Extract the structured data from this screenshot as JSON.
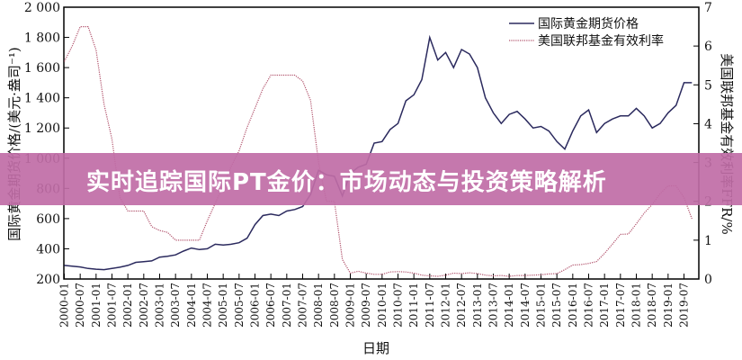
{
  "banner": {
    "title": "实时追踪国际PT金价：市场动态与投资策略解析",
    "color": "#c06ca6"
  },
  "chart_data": {
    "type": "line",
    "xlabel": "日期",
    "ylabel_left": "国际黄金期货价格/(美元·盎司⁻¹)",
    "ylabel_right": "美国联邦基金有效利率FFR/%",
    "ylim_left": [
      200,
      2000
    ],
    "ylim_right": [
      0,
      7
    ],
    "yticks_left": [
      "200",
      "400",
      "600",
      "800",
      "1 000",
      "1 200",
      "1 400",
      "1 600",
      "1 800",
      "2 000"
    ],
    "yticks_right": [
      "0",
      "1",
      "2",
      "3",
      "4",
      "5",
      "6",
      "7"
    ],
    "xticks": [
      "2000-01",
      "2000-07",
      "2001-01",
      "2001-07",
      "2002-01",
      "2002-07",
      "2003-01",
      "2003-07",
      "2004-01",
      "2004-07",
      "2005-01",
      "2005-07",
      "2006-01",
      "2006-07",
      "2007-01",
      "2007-07",
      "2008-01",
      "2008-07",
      "2009-01",
      "2009-07",
      "2010-01",
      "2010-07",
      "2011-01",
      "2011-07",
      "2012-01",
      "2012-07",
      "2013-01",
      "2013-07",
      "2014-01",
      "2014-07",
      "2015-01",
      "2015-07",
      "2016-01",
      "2016-07",
      "2017-01",
      "2017-07",
      "2018-01",
      "2018-07",
      "2019-01",
      "2019-07"
    ],
    "grid": false,
    "legend_position": "top-right",
    "x": [
      "2000-01",
      "2000-04",
      "2000-07",
      "2000-10",
      "2001-01",
      "2001-04",
      "2001-07",
      "2001-10",
      "2002-01",
      "2002-04",
      "2002-07",
      "2002-10",
      "2003-01",
      "2003-04",
      "2003-07",
      "2003-10",
      "2004-01",
      "2004-04",
      "2004-07",
      "2004-10",
      "2005-01",
      "2005-04",
      "2005-07",
      "2005-10",
      "2006-01",
      "2006-04",
      "2006-07",
      "2006-10",
      "2007-01",
      "2007-04",
      "2007-07",
      "2007-10",
      "2008-01",
      "2008-04",
      "2008-07",
      "2008-10",
      "2009-01",
      "2009-04",
      "2009-07",
      "2009-10",
      "2010-01",
      "2010-04",
      "2010-07",
      "2010-10",
      "2011-01",
      "2011-04",
      "2011-07",
      "2011-10",
      "2012-01",
      "2012-04",
      "2012-07",
      "2012-10",
      "2013-01",
      "2013-04",
      "2013-07",
      "2013-10",
      "2014-01",
      "2014-04",
      "2014-07",
      "2014-10",
      "2015-01",
      "2015-04",
      "2015-07",
      "2015-10",
      "2016-01",
      "2016-04",
      "2016-07",
      "2016-10",
      "2017-01",
      "2017-04",
      "2017-07",
      "2017-10",
      "2018-01",
      "2018-04",
      "2018-07",
      "2018-10",
      "2019-01",
      "2019-04",
      "2019-07",
      "2019-10"
    ],
    "series": [
      {
        "name": "国际黄金期货价格",
        "axis": "left",
        "color": "#2b2a5e",
        "style": "solid",
        "values": [
          290,
          285,
          280,
          270,
          265,
          262,
          270,
          278,
          290,
          310,
          315,
          320,
          345,
          350,
          360,
          385,
          405,
          395,
          400,
          430,
          425,
          430,
          440,
          470,
          560,
          620,
          630,
          620,
          650,
          660,
          680,
          760,
          920,
          890,
          880,
          750,
          900,
          940,
          960,
          1100,
          1110,
          1190,
          1230,
          1380,
          1420,
          1520,
          1800,
          1650,
          1700,
          1600,
          1720,
          1690,
          1600,
          1400,
          1300,
          1230,
          1290,
          1310,
          1260,
          1200,
          1210,
          1180,
          1110,
          1060,
          1180,
          1280,
          1320,
          1170,
          1230,
          1260,
          1280,
          1280,
          1330,
          1280,
          1200,
          1230,
          1300,
          1350,
          1500,
          1500
        ]
      },
      {
        "name": "美国联邦基金有效利率",
        "axis": "right",
        "color": "#b0506a",
        "style": "dotted",
        "values": [
          5.6,
          6.0,
          6.5,
          6.5,
          5.9,
          4.5,
          3.6,
          2.1,
          1.75,
          1.75,
          1.75,
          1.35,
          1.25,
          1.2,
          1.0,
          1.0,
          1.0,
          1.0,
          1.5,
          1.95,
          2.4,
          2.9,
          3.3,
          3.9,
          4.4,
          4.9,
          5.25,
          5.25,
          5.25,
          5.25,
          5.1,
          4.6,
          3.0,
          2.0,
          2.0,
          0.5,
          0.15,
          0.2,
          0.15,
          0.12,
          0.12,
          0.18,
          0.19,
          0.18,
          0.15,
          0.1,
          0.08,
          0.07,
          0.1,
          0.15,
          0.14,
          0.16,
          0.14,
          0.1,
          0.08,
          0.09,
          0.07,
          0.09,
          0.09,
          0.1,
          0.11,
          0.13,
          0.14,
          0.24,
          0.36,
          0.37,
          0.4,
          0.45,
          0.66,
          0.9,
          1.15,
          1.16,
          1.42,
          1.7,
          1.92,
          2.2,
          2.4,
          2.4,
          2.1,
          1.55
        ]
      }
    ]
  }
}
